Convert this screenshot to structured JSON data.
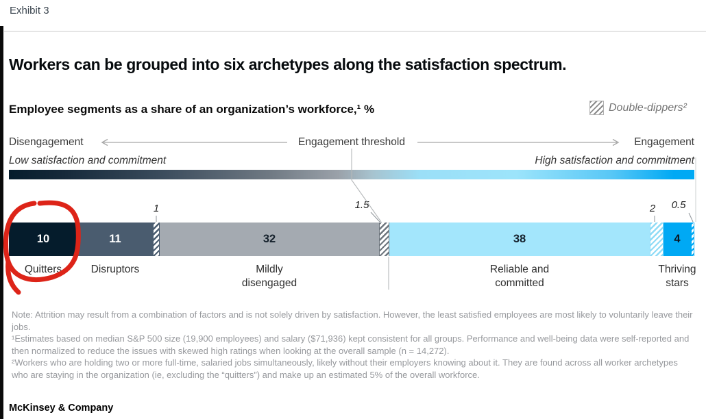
{
  "page": {
    "exhibit_label": "Exhibit 3",
    "title": "Workers can be grouped into six archetypes along the satisfaction spectrum.",
    "subtitle": "Employee segments as a share of an organization’s workforce,¹ %",
    "footer": "McKinsey & Company"
  },
  "legend": {
    "label": "Double-dippers²",
    "icon": "hatched-square-icon"
  },
  "spectrum": {
    "left_label": "Disengagement",
    "center_label": "Engagement threshold",
    "right_label": "Engagement",
    "left_sublabel": "Low satisfaction and commitment",
    "right_sublabel": "High satisfaction and commitment"
  },
  "chart_data": {
    "type": "bar",
    "subtype": "horizontal-stacked",
    "unit": "%",
    "total": 100,
    "title": "Employee segments as a share of an organization’s workforce, %",
    "axis_gradient": {
      "left_color": "#051c2c",
      "mid_color": "#9aa1a9",
      "right_color": "#00a9f4"
    },
    "segments": [
      {
        "name": "quitters",
        "label": "Quitters",
        "label_lines": [
          "Quitters"
        ],
        "value": 10,
        "display_value": "10",
        "fill": "#051c2c",
        "hatched": false,
        "value_text_color": "#ffffff"
      },
      {
        "name": "disruptors",
        "label": "Disruptors",
        "label_lines": [
          "Disruptors"
        ],
        "value": 11,
        "display_value": "11",
        "fill": "#4a5c6f",
        "hatched": false,
        "value_text_color": "#ffffff"
      },
      {
        "name": "double-dippers-1",
        "label": "Double-dippers",
        "value": 1,
        "display_value": "1",
        "fill": "#4a5c6f",
        "hatched": true
      },
      {
        "name": "mildly-disengaged",
        "label": "Mildly disengaged",
        "label_lines": [
          "Mildly",
          "disengaged"
        ],
        "value": 32,
        "display_value": "32",
        "fill": "#a4aab1",
        "hatched": false,
        "value_text_color": "#14202b"
      },
      {
        "name": "double-dippers-1-5",
        "label": "Double-dippers",
        "value": 1.5,
        "display_value": "1.5",
        "fill": "#6e767e",
        "hatched": true
      },
      {
        "name": "reliable-committed",
        "label": "Reliable and committed",
        "label_lines": [
          "Reliable and",
          "committed"
        ],
        "value": 38,
        "display_value": "38",
        "fill": "#a3e6fc",
        "hatched": false,
        "value_text_color": "#14202b"
      },
      {
        "name": "double-dippers-2",
        "label": "Double-dippers",
        "value": 2,
        "display_value": "2",
        "fill": "#8edbf6",
        "hatched": true
      },
      {
        "name": "thriving-stars",
        "label": "Thriving stars",
        "label_lines": [
          "Thriving",
          "stars"
        ],
        "value": 4,
        "display_value": "4",
        "fill": "#00a9f4",
        "hatched": false,
        "value_text_color": "#0b1620"
      },
      {
        "name": "double-dippers-0-5",
        "label": "Double-dippers",
        "value": 0.5,
        "display_value": "0.5",
        "fill": "#00a9f4",
        "hatched": true
      }
    ],
    "annotations": {
      "red_circle_segment": "Quitters"
    }
  },
  "notes": [
    "Note: Attrition may result from a combination of factors and is not solely driven by satisfaction. However, the least satisfied employees are most likely to voluntarily leave their jobs.",
    "¹Estimates based on median S&P 500 size (19,900 employees) and salary ($71,936) kept consistent for all groups. Performance and well-being data were self-reported and then normalized to reduce the issues with skewed high ratings when looking at the overall sample (n = 14,272).",
    "²Workers who are holding two or more full-time, salaried jobs simultaneously, likely without their employers knowing about it. They are found across all worker archetypes who are staying in the organization (ie, excluding the “quitters”) and make up an estimated 5% of the overall workforce."
  ],
  "colors": {
    "accent_blue": "#00a9f4",
    "deep_blue": "#051c2c",
    "annotation_red": "#dd2418",
    "note_gray": "#97999d"
  }
}
